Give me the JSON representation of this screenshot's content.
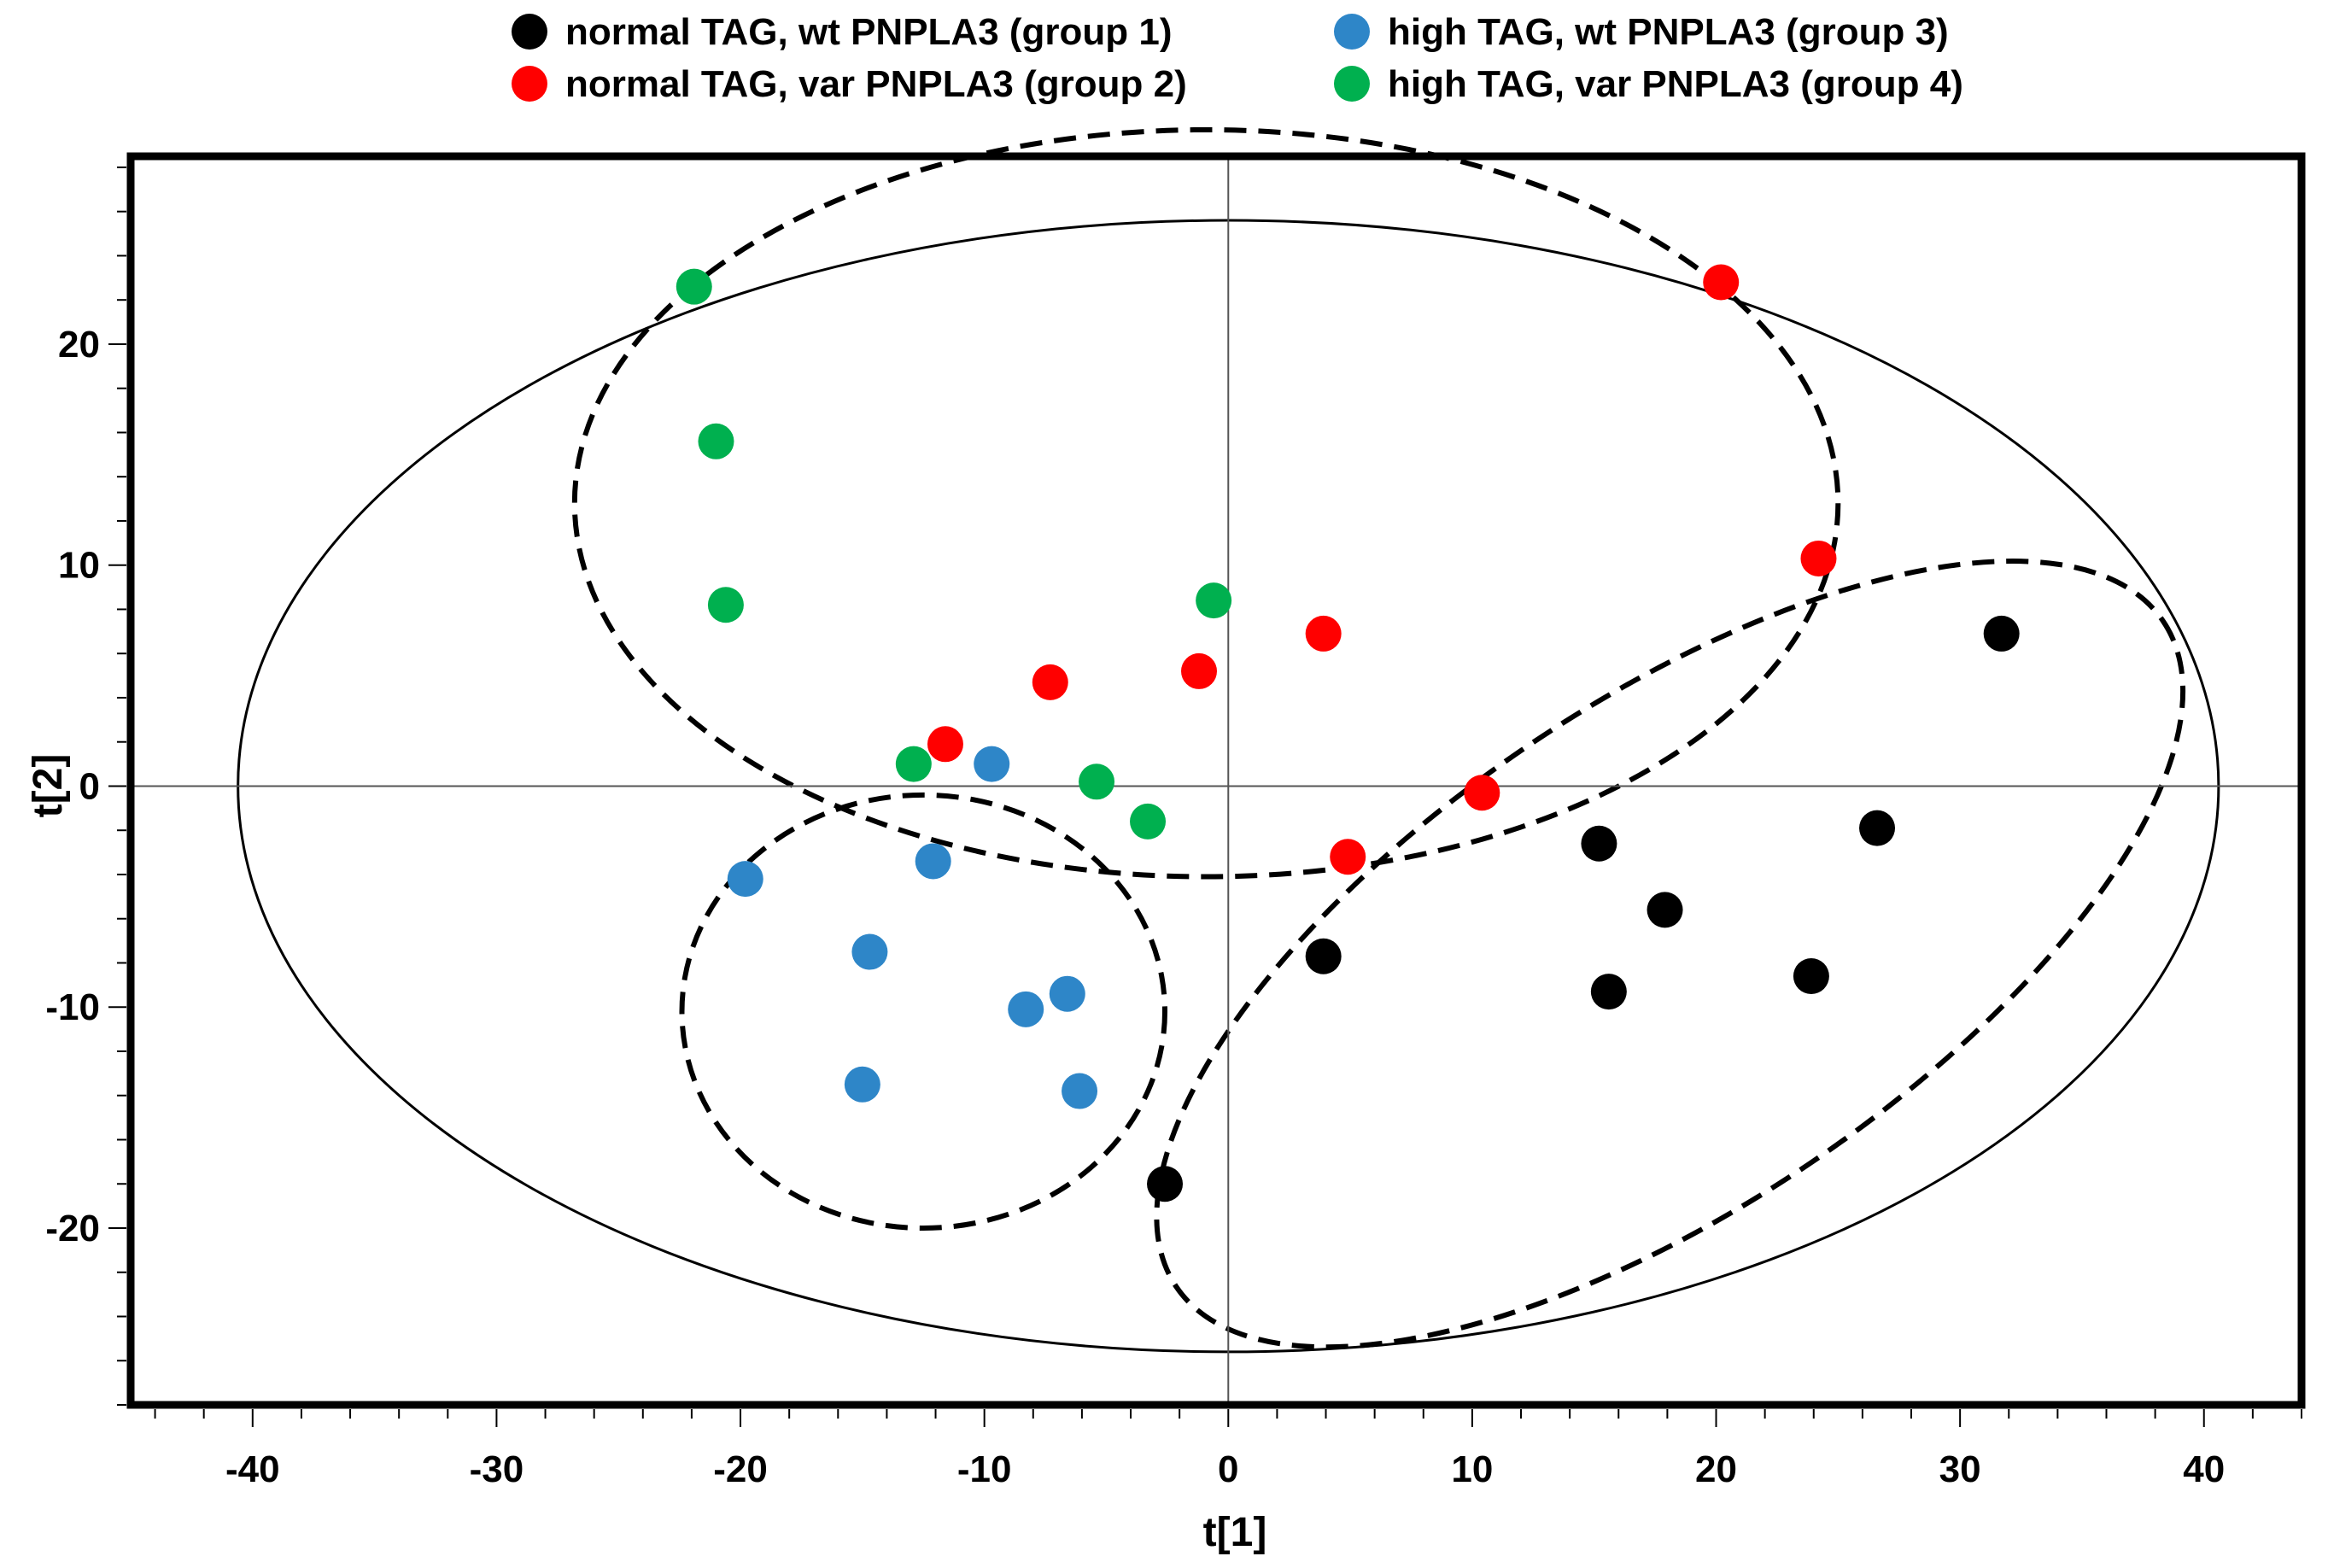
{
  "chart_data": {
    "type": "scatter",
    "title": "",
    "xlabel": "t[1]",
    "ylabel": "t[2]",
    "xlim": [
      -45,
      44
    ],
    "ylim": [
      -28,
      28.5
    ],
    "xticks": [
      -40,
      -30,
      -20,
      -10,
      0,
      10,
      20,
      30,
      40
    ],
    "yticks": [
      -20,
      -10,
      0,
      10,
      20
    ],
    "grid": false,
    "legend_position": "top",
    "series": [
      {
        "name": "normal TAG, wt PNPLA3 (group 1)",
        "color": "#000000",
        "points": [
          [
            31.7,
            6.9
          ],
          [
            15.2,
            -2.6
          ],
          [
            26.6,
            -1.9
          ],
          [
            17.9,
            -5.6
          ],
          [
            15.6,
            -9.3
          ],
          [
            23.9,
            -8.6
          ],
          [
            3.9,
            -7.7
          ],
          [
            -2.6,
            -18.0
          ]
        ]
      },
      {
        "name": "normal TAG, var PNPLA3 (group 2)",
        "color": "#ff0000",
        "points": [
          [
            20.2,
            22.8
          ],
          [
            24.2,
            10.3
          ],
          [
            3.9,
            6.9
          ],
          [
            -1.2,
            5.2
          ],
          [
            -7.3,
            4.7
          ],
          [
            -11.6,
            1.9
          ],
          [
            10.4,
            -0.3
          ],
          [
            4.9,
            -3.2
          ]
        ]
      },
      {
        "name": "high TAG, wt PNPLA3 (group 3)",
        "color": "#2e86c8",
        "points": [
          [
            -9.7,
            1.0
          ],
          [
            -12.1,
            -3.4
          ],
          [
            -19.8,
            -4.2
          ],
          [
            -14.7,
            -7.5
          ],
          [
            -6.6,
            -9.4
          ],
          [
            -8.3,
            -10.1
          ],
          [
            -15.0,
            -13.5
          ],
          [
            -6.1,
            -13.8
          ]
        ]
      },
      {
        "name": "high TAG, var PNPLA3 (group 4)",
        "color": "#00b04f",
        "points": [
          [
            -21.9,
            22.6
          ],
          [
            -21.0,
            15.6
          ],
          [
            -20.6,
            8.2
          ],
          [
            -0.6,
            8.4
          ],
          [
            -12.9,
            1.0
          ],
          [
            -5.4,
            0.2
          ],
          [
            -3.3,
            -1.6
          ]
        ]
      }
    ],
    "ellipses": [
      {
        "name": "hotelling-t2-ellipse",
        "style": "solid",
        "cx": 0,
        "cy": 0,
        "rx": 40.6,
        "ry": 25.6,
        "angle": 0
      },
      {
        "name": "group-2-4-cluster-ellipse",
        "style": "dashed",
        "cx": -0.9,
        "cy": 12.8,
        "rx": 25.9,
        "ry": 16.9,
        "angle": 0
      },
      {
        "name": "group-3-cluster-ellipse",
        "style": "dashed",
        "cx": -12.5,
        "cy": -10.2,
        "rx": 9.9,
        "ry": 9.8,
        "angle": 0
      },
      {
        "name": "group-1-cluster-ellipse",
        "style": "dashed",
        "cx": 18.1,
        "cy": -7.6,
        "rx": 24.4,
        "ry": 11.4,
        "angle": 34
      }
    ]
  }
}
